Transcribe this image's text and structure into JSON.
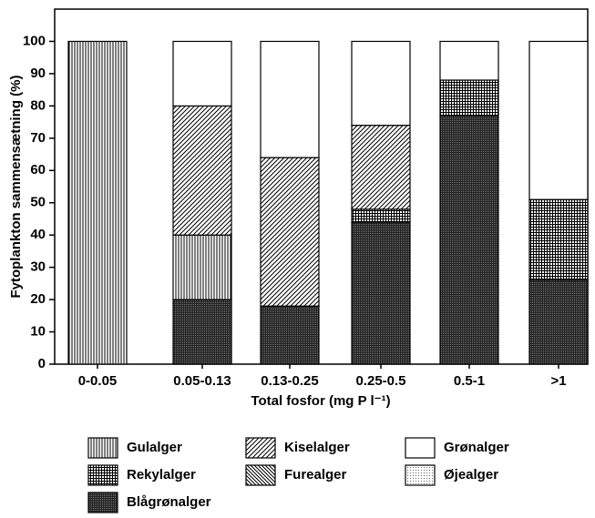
{
  "chart_data": {
    "type": "stacked_bar",
    "y_label": "Fytoplankton sammensætning (%)",
    "x_label": "Total fosfor (mg P l⁻¹)",
    "categories": [
      "0-0.05",
      "0.05-0.13",
      "0.13-0.25",
      "0.25-0.5",
      "0.5-1",
      ">1"
    ],
    "series": [
      {
        "name": "Gulalger",
        "pattern": "vertical",
        "color": "#000000",
        "values": [
          100,
          20,
          0,
          0,
          0,
          0
        ]
      },
      {
        "name": "Kiselalger",
        "pattern": "diagonal",
        "color": "#000000",
        "values": [
          0,
          40,
          46,
          26,
          0,
          0
        ]
      },
      {
        "name": "Grønalger",
        "pattern": "none",
        "color": "#ffffff",
        "values": [
          0,
          20,
          36,
          26,
          12,
          49
        ]
      },
      {
        "name": "Rekylalger",
        "pattern": "grid",
        "color": "#000000",
        "values": [
          0,
          0,
          0,
          4,
          11,
          25
        ]
      },
      {
        "name": "Furealger",
        "pattern": "backdiagonal",
        "color": "#000000",
        "values": [
          0,
          0,
          0,
          0,
          0,
          0
        ]
      },
      {
        "name": "Øjealger",
        "pattern": "dots",
        "color": "#000000",
        "values": [
          0,
          0,
          0,
          0,
          0,
          0
        ]
      },
      {
        "name": "Blågrønalger",
        "pattern": "dark",
        "color": "#000000",
        "values": [
          0,
          20,
          18,
          44,
          77,
          26
        ]
      }
    ],
    "ylim": [
      0,
      110
    ],
    "yticks": [
      0,
      10,
      20,
      30,
      40,
      50,
      60,
      70,
      80,
      90,
      100
    ]
  }
}
